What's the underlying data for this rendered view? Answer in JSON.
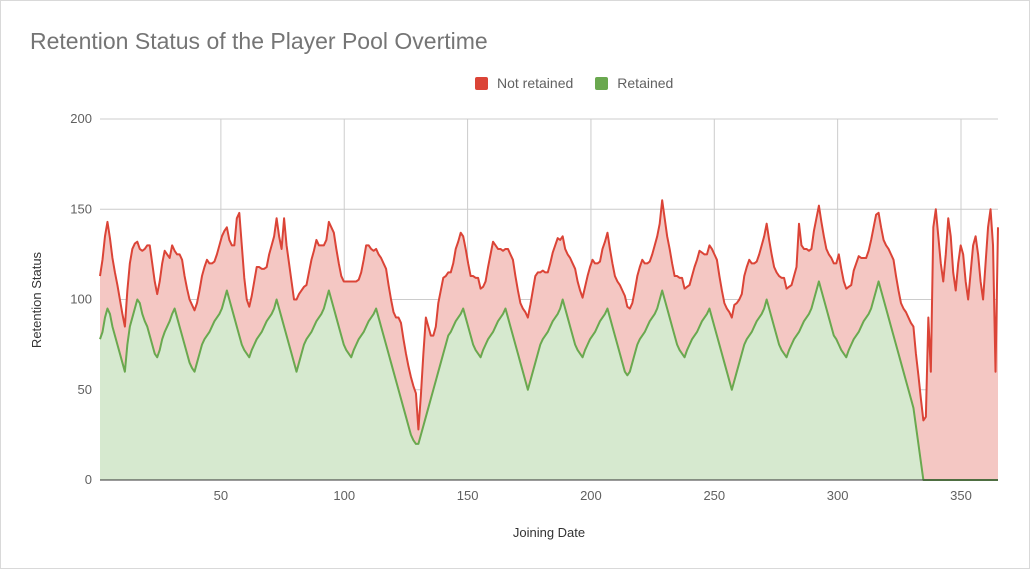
{
  "chart_data": {
    "type": "area",
    "title": "Retention Status of the Player Pool Overtime",
    "xlabel": "Joining Date",
    "ylabel": "Retention Status",
    "xlim": [
      1,
      365
    ],
    "ylim": [
      0,
      200
    ],
    "x_ticks": [
      "50",
      "100",
      "150",
      "200",
      "250",
      "300",
      "350"
    ],
    "y_ticks": [
      "0",
      "50",
      "100",
      "150",
      "200"
    ],
    "stacked": true,
    "grid": true,
    "legend_position": "top",
    "series": [
      {
        "name": "Not retained",
        "color": "#db4437",
        "fill": "#f4c7c3",
        "values": [
          35,
          40,
          45,
          48,
          42,
          38,
          35,
          33,
          30,
          27,
          25,
          30,
          35,
          38,
          36,
          32,
          30,
          35,
          40,
          45,
          50,
          45,
          40,
          35,
          38,
          42,
          45,
          40,
          35,
          38,
          32,
          35,
          40,
          42,
          38,
          36,
          35,
          35,
          34,
          33,
          35,
          38,
          40,
          42,
          38,
          35,
          33,
          35,
          38,
          40,
          38,
          35,
          33,
          35,
          40,
          60,
          68,
          55,
          40,
          30,
          28,
          30,
          35,
          40,
          38,
          35,
          32,
          30,
          35,
          38,
          40,
          45,
          40,
          38,
          60,
          50,
          45,
          40,
          35,
          40,
          38,
          35,
          32,
          30,
          35,
          40,
          42,
          45,
          40,
          38,
          35,
          33,
          38,
          40,
          42,
          38,
          35,
          33,
          35,
          38,
          40,
          42,
          38,
          35,
          33,
          35,
          40,
          45,
          42,
          38,
          35,
          33,
          35,
          38,
          40,
          42,
          38,
          35,
          33,
          35,
          40,
          42,
          38,
          35,
          33,
          32,
          30,
          28,
          8,
          22,
          40,
          55,
          45,
          35,
          30,
          30,
          38,
          40,
          42,
          38,
          35,
          33,
          35,
          40,
          42,
          45,
          40,
          38,
          35,
          33,
          38,
          40,
          42,
          38,
          35,
          35,
          40,
          45,
          50,
          45,
          40,
          38,
          35,
          33,
          38,
          40,
          42,
          38,
          35,
          33,
          35,
          38,
          40,
          42,
          45,
          48,
          45,
          40,
          38,
          35,
          33,
          35,
          38,
          40,
          42,
          38,
          35,
          33,
          35,
          38,
          40,
          42,
          38,
          35,
          33,
          35,
          38,
          40,
          42,
          38,
          35,
          33,
          38,
          40,
          42,
          38,
          35,
          33,
          35,
          38,
          40,
          42,
          38,
          35,
          33,
          35,
          38,
          40,
          42,
          38,
          35,
          33,
          35,
          38,
          40,
          42,
          50,
          45,
          40,
          38,
          35,
          33,
          38,
          40,
          42,
          38,
          35,
          33,
          35,
          38,
          40,
          42,
          38,
          35,
          33,
          35,
          38,
          40,
          42,
          38,
          35,
          33,
          35,
          38,
          40,
          42,
          38,
          35,
          33,
          38,
          40,
          42,
          38,
          35,
          33,
          35,
          38,
          40,
          42,
          38,
          35,
          33,
          35,
          38,
          40,
          42,
          38,
          35,
          33,
          35,
          38,
          60,
          45,
          40,
          38,
          35,
          33,
          38,
          40,
          42,
          38,
          35,
          33,
          35,
          38,
          40,
          42,
          50,
          45,
          40,
          38,
          35,
          33,
          38,
          40,
          42,
          38,
          35,
          33,
          35,
          38,
          40,
          42,
          38,
          35,
          33,
          35,
          38,
          40,
          42,
          38,
          35,
          33,
          35,
          38,
          40,
          42,
          45,
          40,
          38,
          35,
          33,
          35,
          90,
          60,
          140,
          150,
          135,
          120,
          110,
          125,
          145,
          135,
          115,
          105,
          120,
          130,
          125,
          110,
          100,
          115,
          130,
          135,
          125,
          110,
          100,
          120,
          140,
          150,
          130,
          60,
          140
        ]
      },
      {
        "name": "Retained",
        "color": "#6aa84f",
        "fill": "#d6e9cf",
        "values": [
          78,
          82,
          90,
          95,
          92,
          85,
          80,
          75,
          70,
          65,
          60,
          75,
          85,
          90,
          95,
          100,
          98,
          92,
          88,
          85,
          80,
          75,
          70,
          68,
          72,
          78,
          82,
          85,
          88,
          92,
          95,
          90,
          85,
          80,
          75,
          70,
          65,
          62,
          60,
          65,
          70,
          75,
          78,
          80,
          82,
          85,
          88,
          90,
          92,
          95,
          100,
          105,
          100,
          95,
          90,
          85,
          80,
          75,
          72,
          70,
          68,
          72,
          75,
          78,
          80,
          82,
          85,
          88,
          90,
          92,
          95,
          100,
          95,
          90,
          85,
          80,
          75,
          70,
          65,
          60,
          65,
          70,
          75,
          78,
          80,
          82,
          85,
          88,
          90,
          92,
          95,
          100,
          105,
          100,
          95,
          90,
          85,
          80,
          75,
          72,
          70,
          68,
          72,
          75,
          78,
          80,
          82,
          85,
          88,
          90,
          92,
          95,
          90,
          85,
          80,
          75,
          70,
          65,
          60,
          55,
          50,
          45,
          40,
          35,
          30,
          25,
          22,
          20,
          20,
          25,
          30,
          35,
          40,
          45,
          50,
          55,
          60,
          65,
          70,
          75,
          80,
          82,
          85,
          88,
          90,
          92,
          95,
          90,
          85,
          80,
          75,
          72,
          70,
          68,
          72,
          75,
          78,
          80,
          82,
          85,
          88,
          90,
          92,
          95,
          90,
          85,
          80,
          75,
          70,
          65,
          60,
          55,
          50,
          55,
          60,
          65,
          70,
          75,
          78,
          80,
          82,
          85,
          88,
          90,
          92,
          95,
          100,
          95,
          90,
          85,
          80,
          75,
          72,
          70,
          68,
          72,
          75,
          78,
          80,
          82,
          85,
          88,
          90,
          92,
          95,
          90,
          85,
          80,
          75,
          70,
          65,
          60,
          58,
          60,
          65,
          70,
          75,
          78,
          80,
          82,
          85,
          88,
          90,
          92,
          95,
          100,
          105,
          100,
          95,
          90,
          85,
          80,
          75,
          72,
          70,
          68,
          72,
          75,
          78,
          80,
          82,
          85,
          88,
          90,
          92,
          95,
          90,
          85,
          80,
          75,
          70,
          65,
          60,
          55,
          50,
          55,
          60,
          65,
          70,
          75,
          78,
          80,
          82,
          85,
          88,
          90,
          92,
          95,
          100,
          95,
          90,
          85,
          80,
          75,
          72,
          70,
          68,
          72,
          75,
          78,
          80,
          82,
          85,
          88,
          90,
          92,
          95,
          100,
          105,
          110,
          105,
          100,
          95,
          90,
          85,
          80,
          78,
          75,
          72,
          70,
          68,
          72,
          75,
          78,
          80,
          82,
          85,
          88,
          90,
          92,
          95,
          100,
          105,
          110,
          105,
          100,
          95,
          90,
          85,
          80,
          75,
          70,
          65,
          60,
          55,
          50,
          45,
          40,
          30,
          20,
          10,
          0,
          0,
          0,
          0,
          0,
          0,
          0,
          0,
          0,
          0,
          0,
          0,
          0,
          0,
          0,
          0,
          0,
          0,
          0,
          0,
          0,
          0,
          0,
          0,
          0,
          0,
          0,
          0,
          0,
          0,
          0,
          0,
          0,
          0,
          0
        ]
      }
    ]
  }
}
